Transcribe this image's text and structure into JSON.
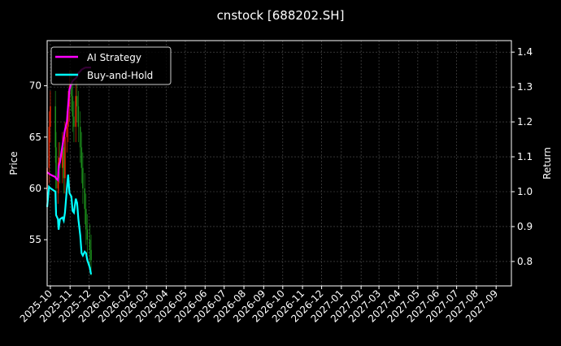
{
  "chart_data": {
    "type": "line",
    "title": "cnstock [688202.SH]",
    "ylabel_left": "Price",
    "ylabel_right": "Return",
    "ylim_left": [
      50.5,
      74.4
    ],
    "ylim_right": [
      0.73,
      1.433
    ],
    "xlim": [
      "2025-09-26",
      "2027-09-25"
    ],
    "left_ticks": [
      55,
      60,
      65,
      70
    ],
    "right_ticks": [
      0.8,
      0.9,
      1.0,
      1.1,
      1.2,
      1.3,
      1.4
    ],
    "x_ticks": [
      "2025-10",
      "2025-11",
      "2025-12",
      "2026-01",
      "2026-02",
      "2026-03",
      "2026-04",
      "2026-05",
      "2026-06",
      "2026-07",
      "2026-08",
      "2026-09",
      "2026-10",
      "2026-11",
      "2026-12",
      "2027-01",
      "2027-02",
      "2027-03",
      "2027-04",
      "2027-05",
      "2027-06",
      "2027-07",
      "2027-08",
      "2027-09"
    ],
    "grid": true,
    "legend_placement": "top-left",
    "dates": [
      "2025-09-26",
      "2025-09-29",
      "2025-10-01",
      "2025-10-09",
      "2025-10-10",
      "2025-10-13",
      "2025-10-14",
      "2025-10-16",
      "2025-10-20",
      "2025-10-22",
      "2025-10-24",
      "2025-10-27",
      "2025-10-29",
      "2025-10-31",
      "2025-11-03",
      "2025-11-05",
      "2025-11-07",
      "2025-11-10",
      "2025-11-12",
      "2025-11-14",
      "2025-11-17",
      "2025-11-19",
      "2025-11-21",
      "2025-11-24",
      "2025-11-26",
      "2025-11-28",
      "2025-12-02",
      "2025-12-04"
    ],
    "candles_close": [
      62,
      66,
      68,
      64,
      60,
      61,
      63,
      62,
      64,
      61,
      65,
      66,
      68,
      70,
      69,
      67,
      66,
      69,
      68,
      66,
      64,
      62,
      60,
      58,
      56,
      55,
      54,
      53
    ],
    "candle_colors": {
      "up": "#ff2a00",
      "down": "#1f9e1f"
    },
    "series": [
      {
        "name": "AI Strategy",
        "color": "#ff00ff",
        "values": [
          1.056,
          1.052,
          1.049,
          1.042,
          1.038,
          1.033,
          1.073,
          1.084,
          1.131,
          1.155,
          1.177,
          1.2,
          1.247,
          1.293,
          1.31,
          1.317,
          1.321,
          1.325,
          1.33,
          1.34,
          1.345,
          1.35,
          1.352,
          1.355,
          1.356,
          1.356,
          1.356,
          1.356
        ]
      },
      {
        "name": "Buy-and-Hold",
        "color": "#00ffff",
        "values": [
          0.956,
          1.014,
          1.01,
          1.0,
          0.933,
          0.921,
          0.891,
          0.921,
          0.926,
          0.917,
          0.94,
          1.01,
          1.049,
          0.996,
          0.986,
          0.945,
          0.94,
          0.98,
          0.968,
          0.921,
          0.875,
          0.824,
          0.817,
          0.828,
          0.824,
          0.805,
          0.782,
          0.763
        ]
      }
    ]
  }
}
